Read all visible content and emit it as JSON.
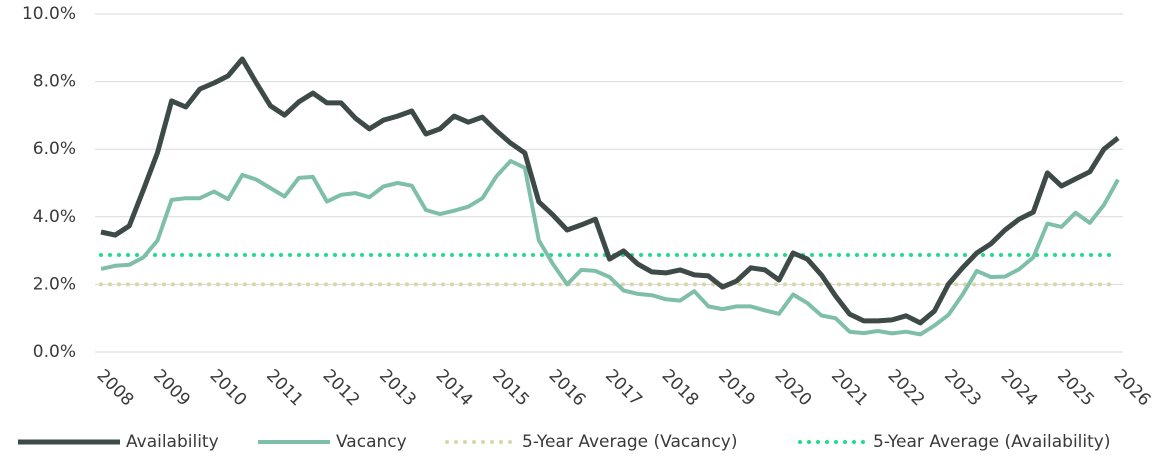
{
  "chart_data": {
    "type": "line",
    "x": [
      2008,
      2008.25,
      2008.5,
      2008.75,
      2009,
      2009.25,
      2009.5,
      2009.75,
      2010,
      2010.25,
      2010.5,
      2010.75,
      2011,
      2011.25,
      2011.5,
      2011.75,
      2012,
      2012.25,
      2012.5,
      2012.75,
      2013,
      2013.25,
      2013.5,
      2013.75,
      2014,
      2014.25,
      2014.5,
      2014.75,
      2015,
      2015.25,
      2015.5,
      2015.75,
      2016,
      2016.25,
      2016.5,
      2016.75,
      2017,
      2017.25,
      2017.5,
      2017.75,
      2018,
      2018.25,
      2018.5,
      2018.75,
      2019,
      2019.25,
      2019.5,
      2019.75,
      2020,
      2020.25,
      2020.5,
      2020.75,
      2021,
      2021.25,
      2021.5,
      2021.75,
      2022,
      2022.25,
      2022.5,
      2022.75,
      2023,
      2023.25,
      2023.5,
      2023.75,
      2024,
      2024.25,
      2024.5,
      2024.75,
      2025,
      2025.25,
      2025.5,
      2025.75,
      2026
    ],
    "series": [
      {
        "name": "Availability",
        "color": "#3d4a48",
        "values": [
          3.55,
          3.46,
          3.73,
          4.8,
          5.9,
          7.43,
          7.25,
          7.78,
          7.96,
          8.17,
          8.67,
          7.96,
          7.28,
          7.01,
          7.4,
          7.66,
          7.37,
          7.37,
          6.92,
          6.6,
          6.86,
          6.98,
          7.13,
          6.45,
          6.6,
          6.98,
          6.8,
          6.95,
          6.54,
          6.18,
          5.89,
          4.44,
          4.05,
          3.61,
          3.76,
          3.93,
          2.75,
          2.99,
          2.6,
          2.37,
          2.34,
          2.43,
          2.28,
          2.25,
          1.92,
          2.1,
          2.49,
          2.43,
          2.13,
          2.93,
          2.75,
          2.28,
          1.66,
          1.12,
          0.92,
          0.92,
          0.95,
          1.07,
          0.86,
          1.21,
          2.01,
          2.49,
          2.93,
          3.2,
          3.61,
          3.93,
          4.14,
          5.3,
          4.91,
          5.12,
          5.33,
          6.0,
          6.33
        ]
      },
      {
        "name": "Vacancy",
        "color": "#7fbfaa",
        "values": [
          2.46,
          2.55,
          2.58,
          2.8,
          3.3,
          4.5,
          4.55,
          4.55,
          4.75,
          4.52,
          5.24,
          5.1,
          4.85,
          4.6,
          5.15,
          5.18,
          4.45,
          4.65,
          4.7,
          4.58,
          4.9,
          5.0,
          4.92,
          4.2,
          4.08,
          4.18,
          4.3,
          4.55,
          5.2,
          5.65,
          5.45,
          3.3,
          2.6,
          2.0,
          2.43,
          2.4,
          2.22,
          1.82,
          1.72,
          1.68,
          1.56,
          1.52,
          1.8,
          1.35,
          1.27,
          1.35,
          1.35,
          1.23,
          1.13,
          1.7,
          1.45,
          1.08,
          1.0,
          0.6,
          0.56,
          0.62,
          0.55,
          0.6,
          0.52,
          0.78,
          1.1,
          1.7,
          2.4,
          2.22,
          2.23,
          2.45,
          2.8,
          3.8,
          3.7,
          4.12,
          3.82,
          4.35,
          5.1
        ]
      }
    ],
    "reference_lines": [
      {
        "name": "5-Year Average (Vacancy)",
        "color": "#d9d5a5",
        "value": 2.0
      },
      {
        "name": "5-Year Average (Availability)",
        "color": "#1fdc8c",
        "value": 2.87
      }
    ],
    "xlim": [
      2008,
      2026
    ],
    "xticks": [
      2008,
      2009,
      2010,
      2011,
      2012,
      2013,
      2014,
      2015,
      2016,
      2017,
      2018,
      2019,
      2020,
      2021,
      2022,
      2023,
      2024,
      2025,
      2026
    ],
    "ylim": [
      0,
      10
    ],
    "yticks": [
      {
        "value": 0,
        "label": "0.0%"
      },
      {
        "value": 2,
        "label": "2.0%"
      },
      {
        "value": 4,
        "label": "4.0%"
      },
      {
        "value": 6,
        "label": "6.0%"
      },
      {
        "value": 8,
        "label": "8.0%"
      },
      {
        "value": 10,
        "label": "10.0%"
      }
    ],
    "grid": true
  }
}
